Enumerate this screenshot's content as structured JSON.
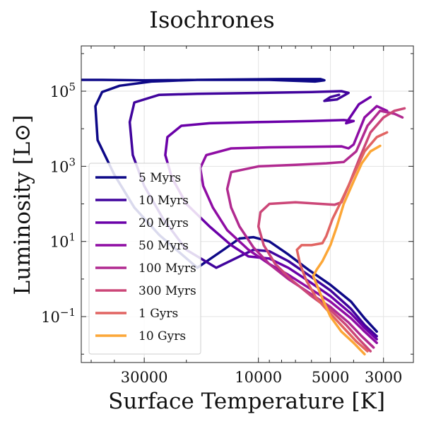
{
  "chart_data": {
    "type": "line",
    "title": "Isochrones",
    "xlabel": "Surface Temperature [K]",
    "ylabel": "Luminosity [L⊙]",
    "x_scale": "log",
    "x_reversed": true,
    "y_scale": "log",
    "xlim": [
      55000,
      2250
    ],
    "ylim": [
      0.006,
      1600000
    ],
    "x_ticks": [
      30000,
      10000,
      5000,
      3000
    ],
    "x_tick_labels": [
      "30000",
      "10000",
      "5000",
      "3000"
    ],
    "y_ticks": [
      0.1,
      10,
      1000,
      100000
    ],
    "y_tick_labels": [
      {
        "base": "10",
        "exp": "−1"
      },
      {
        "base": "10",
        "exp": "1"
      },
      {
        "base": "10",
        "exp": "3"
      },
      {
        "base": "10",
        "exp": "5"
      }
    ],
    "grid": true,
    "legend_position": "lower-left",
    "series": [
      {
        "name": "5 Myrs",
        "color": "#0d0887",
        "points": [
          [
            3200,
            0.04
          ],
          [
            3600,
            0.09
          ],
          [
            4100,
            0.25
          ],
          [
            5000,
            0.7
          ],
          [
            6200,
            1.8
          ],
          [
            7500,
            4.5
          ],
          [
            9000,
            10
          ],
          [
            10500,
            13
          ],
          [
            12000,
            12
          ],
          [
            14000,
            6
          ],
          [
            18000,
            2
          ],
          [
            26000,
            15
          ],
          [
            33000,
            80
          ],
          [
            40000,
            600
          ],
          [
            47000,
            5000
          ],
          [
            48000,
            40000
          ],
          [
            45000,
            95000
          ],
          [
            38000,
            140000
          ],
          [
            28000,
            180000
          ],
          [
            18000,
            200000
          ],
          [
            8000,
            210000
          ],
          [
            5500,
            210000
          ],
          [
            5300,
            195000
          ],
          [
            5800,
            180000
          ],
          [
            9000,
            200000
          ],
          [
            18000,
            200000
          ],
          [
            30000,
            195000
          ],
          [
            45000,
            200000
          ],
          [
            55000,
            200000
          ]
        ]
      },
      {
        "name": "10 Myrs",
        "color": "#41049d",
        "points": [
          [
            3200,
            0.03
          ],
          [
            3600,
            0.06
          ],
          [
            4100,
            0.16
          ],
          [
            5000,
            0.5
          ],
          [
            6200,
            1.3
          ],
          [
            7500,
            3
          ],
          [
            9000,
            5.5
          ],
          [
            10500,
            6
          ],
          [
            12000,
            4
          ],
          [
            15000,
            2
          ],
          [
            20000,
            6
          ],
          [
            25000,
            40
          ],
          [
            30000,
            300
          ],
          [
            33500,
            2000
          ],
          [
            34500,
            15000
          ],
          [
            33000,
            50000
          ],
          [
            26000,
            80000
          ],
          [
            18000,
            85000
          ],
          [
            10000,
            90000
          ],
          [
            6000,
            95000
          ],
          [
            4500,
            100000
          ],
          [
            4200,
            90000
          ],
          [
            4700,
            60000
          ],
          [
            5300,
            55000
          ],
          [
            5000,
            70000
          ],
          [
            4600,
            80000
          ]
        ]
      },
      {
        "name": "20 Myrs",
        "color": "#6a00a8",
        "points": [
          [
            3200,
            0.025
          ],
          [
            3600,
            0.05
          ],
          [
            4100,
            0.12
          ],
          [
            5000,
            0.35
          ],
          [
            6200,
            0.9
          ],
          [
            7500,
            2
          ],
          [
            9000,
            3.5
          ],
          [
            11000,
            4
          ],
          [
            13000,
            8
          ],
          [
            16000,
            25
          ],
          [
            20000,
            100
          ],
          [
            23000,
            500
          ],
          [
            24500,
            2000
          ],
          [
            24000,
            6000
          ],
          [
            21000,
            12000
          ],
          [
            16000,
            14000
          ],
          [
            10000,
            15000
          ],
          [
            6000,
            16000
          ],
          [
            4400,
            17000
          ],
          [
            4000,
            16000
          ],
          [
            4300,
            14000
          ],
          [
            3800,
            45000
          ],
          [
            3400,
            70000
          ]
        ]
      },
      {
        "name": "50 Myrs",
        "color": "#8f0da4",
        "points": [
          [
            3200,
            0.02
          ],
          [
            3600,
            0.04
          ],
          [
            4100,
            0.09
          ],
          [
            5000,
            0.25
          ],
          [
            6200,
            0.6
          ],
          [
            7500,
            1.3
          ],
          [
            9000,
            2.5
          ],
          [
            11000,
            6
          ],
          [
            13500,
            20
          ],
          [
            15500,
            80
          ],
          [
            17000,
            300
          ],
          [
            17500,
            900
          ],
          [
            16500,
            2000
          ],
          [
            13000,
            3000
          ],
          [
            9000,
            3200
          ],
          [
            6000,
            3300
          ],
          [
            4500,
            3400
          ],
          [
            4200,
            3000
          ],
          [
            4000,
            3800
          ],
          [
            3600,
            20000
          ],
          [
            3200,
            40000
          ],
          [
            2900,
            30000
          ]
        ]
      },
      {
        "name": "100 Myrs",
        "color": "#b12a90",
        "points": [
          [
            3300,
            0.015
          ],
          [
            3700,
            0.03
          ],
          [
            4200,
            0.07
          ],
          [
            5000,
            0.18
          ],
          [
            6200,
            0.45
          ],
          [
            7500,
            1
          ],
          [
            9000,
            2.5
          ],
          [
            10500,
            7
          ],
          [
            12000,
            25
          ],
          [
            13000,
            80
          ],
          [
            13500,
            250
          ],
          [
            13000,
            700
          ],
          [
            10000,
            1000
          ],
          [
            7000,
            1100
          ],
          [
            5200,
            1200
          ],
          [
            4400,
            1300
          ],
          [
            3900,
            2500
          ],
          [
            3500,
            12000
          ],
          [
            3100,
            30000
          ],
          [
            2700,
            25000
          ],
          [
            2500,
            20000
          ]
        ]
      },
      {
        "name": "300 Myrs",
        "color": "#cc4778",
        "points": [
          [
            3400,
            0.012
          ],
          [
            3800,
            0.025
          ],
          [
            4300,
            0.06
          ],
          [
            5000,
            0.15
          ],
          [
            6000,
            0.35
          ],
          [
            7200,
            0.9
          ],
          [
            8500,
            2.5
          ],
          [
            9500,
            8
          ],
          [
            10000,
            25
          ],
          [
            9800,
            60
          ],
          [
            9000,
            100
          ],
          [
            7000,
            110
          ],
          [
            5500,
            100
          ],
          [
            4800,
            95
          ],
          [
            4500,
            110
          ],
          [
            4200,
            300
          ],
          [
            3800,
            1500
          ],
          [
            3400,
            8000
          ],
          [
            3000,
            20000
          ],
          [
            2700,
            30000
          ],
          [
            2450,
            35000
          ]
        ]
      },
      {
        "name": "1 Gyrs",
        "color": "#e16462",
        "points": [
          [
            3500,
            0.012
          ],
          [
            3900,
            0.022
          ],
          [
            4400,
            0.05
          ],
          [
            5000,
            0.12
          ],
          [
            5700,
            0.3
          ],
          [
            6300,
            0.9
          ],
          [
            6700,
            2.5
          ],
          [
            6900,
            6
          ],
          [
            6600,
            8
          ],
          [
            6000,
            8
          ],
          [
            5400,
            9
          ],
          [
            5200,
            14
          ],
          [
            4900,
            40
          ],
          [
            4500,
            120
          ],
          [
            4000,
            600
          ],
          [
            3600,
            2500
          ],
          [
            3200,
            6000
          ],
          [
            2900,
            8000
          ]
        ]
      },
      {
        "name": "10 Gyrs",
        "color": "#fca636",
        "points": [
          [
            3600,
            0.01
          ],
          [
            4000,
            0.02
          ],
          [
            4500,
            0.04
          ],
          [
            5000,
            0.1
          ],
          [
            5400,
            0.3
          ],
          [
            5700,
            0.7
          ],
          [
            5900,
            1.2
          ],
          [
            5700,
            1.8
          ],
          [
            5400,
            3
          ],
          [
            5000,
            8
          ],
          [
            4700,
            25
          ],
          [
            4400,
            100
          ],
          [
            4000,
            400
          ],
          [
            3700,
            1200
          ],
          [
            3400,
            2500
          ],
          [
            3100,
            3500
          ]
        ]
      }
    ]
  }
}
